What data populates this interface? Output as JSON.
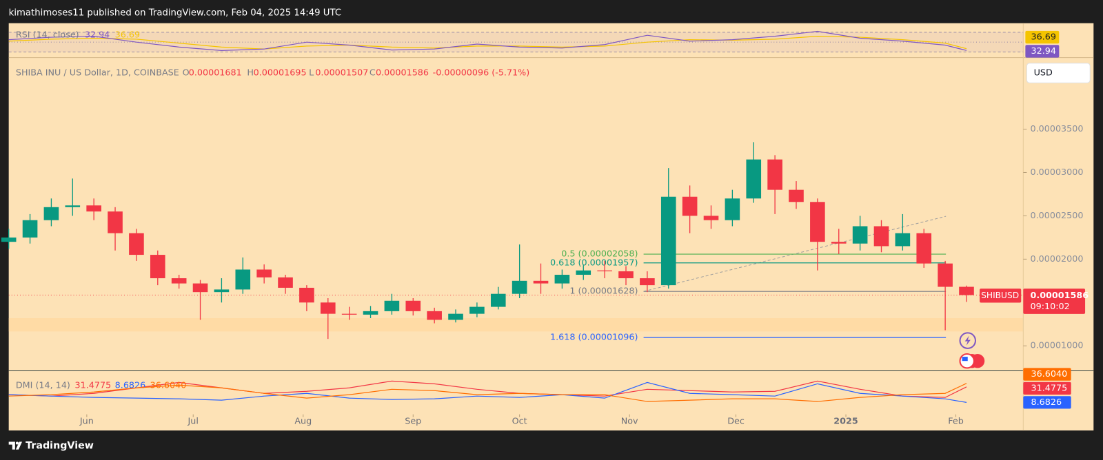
{
  "header": "kimathimoses11 published on TradingView.com, Feb 04, 2025 14:49 UTC",
  "footer": "TradingView",
  "currency": "USD",
  "chart_data": {
    "type": "candlestick",
    "symbol": "SHIBA INU / US Dollar, 1D, COINBASE",
    "ohlc_labels": [
      "O",
      "H",
      "L",
      "C"
    ],
    "change": "-0.00000096 (-5.71%)",
    "ticker": "SHIBUSD",
    "countdown": "09:10:02",
    "up_color": "#089981",
    "down_color": "#f23645",
    "x": [
      0,
      6,
      12,
      18,
      24,
      30,
      36,
      42,
      48,
      54,
      60,
      66,
      72,
      78,
      84,
      90,
      96,
      102,
      108,
      114,
      120,
      126,
      132,
      138,
      144,
      150,
      156,
      162,
      168,
      174,
      180,
      186,
      192,
      198,
      204,
      210,
      216,
      222,
      228,
      234,
      240,
      246,
      252,
      258,
      264,
      270
    ],
    "open": [
      2.2e-05,
      2.25e-05,
      2.45e-05,
      2.6e-05,
      2.62e-05,
      2.55e-05,
      2.3e-05,
      2.05e-05,
      1.78e-05,
      1.72e-05,
      1.62e-05,
      1.65e-05,
      1.88e-05,
      1.79e-05,
      1.67e-05,
      1.5e-05,
      1.37e-05,
      1.36e-05,
      1.4e-05,
      1.52e-05,
      1.4e-05,
      1.3e-05,
      1.37e-05,
      1.45e-05,
      1.6e-05,
      1.75e-05,
      1.72e-05,
      1.82e-05,
      1.87e-05,
      1.86e-05,
      1.78e-05,
      1.7e-05,
      2.72e-05,
      2.5e-05,
      2.45e-05,
      2.7e-05,
      3.15e-05,
      2.8e-05,
      2.66e-05,
      2.2e-05,
      2.18e-05,
      2.38e-05,
      2.15e-05,
      2.3e-05,
      1.95e-05,
      1.681e-05
    ],
    "high": [
      2.35e-05,
      2.52e-05,
      2.7e-05,
      2.93e-05,
      2.7e-05,
      2.6e-05,
      2.35e-05,
      2.1e-05,
      1.82e-05,
      1.76e-05,
      1.78e-05,
      2.02e-05,
      1.94e-05,
      1.82e-05,
      1.7e-05,
      1.55e-05,
      1.45e-05,
      1.46e-05,
      1.6e-05,
      1.55e-05,
      1.44e-05,
      1.42e-05,
      1.5e-05,
      1.68e-05,
      2.17e-05,
      1.95e-05,
      1.88e-05,
      1.93e-05,
      1.98e-05,
      1.92e-05,
      1.86e-05,
      3.05e-05,
      2.85e-05,
      2.62e-05,
      2.8e-05,
      3.35e-05,
      3.2e-05,
      2.9e-05,
      2.7e-05,
      2.35e-05,
      2.5e-05,
      2.45e-05,
      2.52e-05,
      2.35e-05,
      1.98e-05,
      1.695e-05
    ],
    "low": [
      2.12e-05,
      2.18e-05,
      2.38e-05,
      2.5e-05,
      2.45e-05,
      2.1e-05,
      1.98e-05,
      1.7e-05,
      1.66e-05,
      1.3e-05,
      1.5e-05,
      1.6e-05,
      1.72e-05,
      1.6e-05,
      1.4e-05,
      1.08e-05,
      1.3e-05,
      1.32e-05,
      1.36e-05,
      1.35e-05,
      1.26e-05,
      1.27e-05,
      1.33e-05,
      1.42e-05,
      1.55e-05,
      1.6e-05,
      1.66e-05,
      1.76e-05,
      1.78e-05,
      1.7e-05,
      1.62e-05,
      1.66e-05,
      2.3e-05,
      2.35e-05,
      2.38e-05,
      2.65e-05,
      2.52e-05,
      2.58e-05,
      1.87e-05,
      2.06e-05,
      2.1e-05,
      2.08e-05,
      2.1e-05,
      1.9e-05,
      1.18e-05,
      1.507e-05
    ],
    "close": [
      2.25e-05,
      2.45e-05,
      2.6e-05,
      2.62e-05,
      2.55e-05,
      2.3e-05,
      2.05e-05,
      1.78e-05,
      1.72e-05,
      1.62e-05,
      1.65e-05,
      1.88e-05,
      1.79e-05,
      1.67e-05,
      1.5e-05,
      1.37e-05,
      1.36e-05,
      1.4e-05,
      1.52e-05,
      1.4e-05,
      1.3e-05,
      1.37e-05,
      1.45e-05,
      1.6e-05,
      1.75e-05,
      1.72e-05,
      1.82e-05,
      1.87e-05,
      1.86e-05,
      1.78e-05,
      1.7e-05,
      2.72e-05,
      2.5e-05,
      2.45e-05,
      2.7e-05,
      3.15e-05,
      2.8e-05,
      2.66e-05,
      2.2e-05,
      2.18e-05,
      2.38e-05,
      2.15e-05,
      2.3e-05,
      1.95e-05,
      1.681e-05,
      1.586e-05
    ],
    "xlim": [
      0,
      286
    ],
    "xticks": [
      {
        "value": 22,
        "label": "Jun"
      },
      {
        "value": 52,
        "label": "Jul"
      },
      {
        "value": 83,
        "label": "Aug"
      },
      {
        "value": 114,
        "label": "Sep"
      },
      {
        "value": 144,
        "label": "Oct"
      },
      {
        "value": 175,
        "label": "Nov"
      },
      {
        "value": 205,
        "label": "Dec"
      },
      {
        "value": 236,
        "label": "2025"
      },
      {
        "value": 267,
        "label": "Feb"
      }
    ],
    "ylim": [
      7.12e-06,
      4.285e-05
    ],
    "yticks": [
      {
        "value": 1e-05,
        "label": "0.00001000"
      },
      {
        "value": 2e-05,
        "label": "0.00002000"
      },
      {
        "value": 2.5e-05,
        "label": "0.00002500"
      },
      {
        "value": 3e-05,
        "label": "0.00003000"
      },
      {
        "value": 3.5e-05,
        "label": "0.00003500"
      }
    ],
    "fib_levels": [
      {
        "label": "0.5 (0.00002058)",
        "value": 2.058e-05,
        "color": "#4caf50"
      },
      {
        "label": "0.618 (0.00001957)",
        "value": 1.957e-05,
        "color": "#089981"
      },
      {
        "label": "1 (0.00001628)",
        "value": 1.628e-05,
        "color": "#787b86"
      },
      {
        "label": "1.618 (0.00001096)",
        "value": 1.096e-05,
        "color": "#2962ff"
      }
    ],
    "rsi": {
      "title": "RSI (14, close)",
      "color": "#7e57c2",
      "ma_color": "#f5c400",
      "ylim": [
        21.4,
        88.6
      ],
      "bands": [
        30,
        50,
        70
      ],
      "x": [
        0,
        12,
        24,
        36,
        48,
        60,
        72,
        84,
        96,
        108,
        120,
        132,
        144,
        156,
        168,
        180,
        192,
        204,
        216,
        228,
        240,
        252,
        264,
        270
      ],
      "values": [
        55,
        60,
        62,
        50,
        40,
        33,
        36,
        50,
        44,
        34,
        36,
        46,
        40,
        38,
        45,
        64,
        52,
        55,
        62,
        72,
        58,
        52,
        44,
        32.94
      ],
      "ma_values": [
        52,
        56,
        58,
        56,
        48,
        40,
        36,
        42,
        44,
        40,
        38,
        42,
        42,
        40,
        42,
        50,
        55,
        54,
        56,
        62,
        60,
        55,
        48,
        36.69
      ]
    },
    "dmi": {
      "title": "DMI (14, 14)",
      "ylim": [
        -8.8,
        53
      ],
      "x": [
        0,
        12,
        24,
        36,
        48,
        60,
        72,
        84,
        96,
        108,
        120,
        132,
        144,
        156,
        168,
        180,
        192,
        204,
        216,
        228,
        240,
        252,
        264,
        270
      ],
      "series": [
        {
          "color": "#f23645",
          "values": [
            20,
            18,
            22,
            30,
            38,
            30,
            22,
            25,
            30,
            40,
            36,
            28,
            22,
            20,
            18,
            28,
            26,
            24,
            25,
            40,
            28,
            18,
            16,
            31.4775
          ]
        },
        {
          "color": "#2962ff",
          "values": [
            20,
            18,
            16,
            15,
            14,
            12,
            18,
            22,
            15,
            13,
            14,
            18,
            16,
            20,
            15,
            38,
            22,
            20,
            18,
            36,
            22,
            18,
            14,
            8.6826
          ]
        },
        {
          "color": "#ff6d00",
          "values": [
            18,
            20,
            24,
            30,
            34,
            30,
            22,
            15,
            20,
            28,
            26,
            20,
            22,
            20,
            20,
            10,
            12,
            14,
            14,
            10,
            16,
            20,
            22,
            36.604
          ],
          "value_label": "36.6040"
        }
      ]
    }
  }
}
